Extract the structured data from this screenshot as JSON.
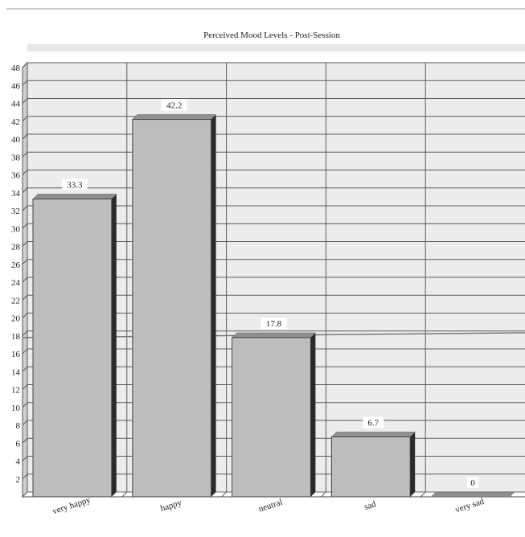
{
  "chart_data": {
    "type": "bar",
    "title": "Perceived Mood Levels - Post-Session",
    "xlabel": "",
    "ylabel": "",
    "categories": [
      "very happy",
      "happy",
      "neutral",
      "sad",
      "very sad"
    ],
    "values": [
      33.3,
      42.2,
      17.8,
      6.7,
      0
    ],
    "value_labels": [
      "33.3",
      "42.2",
      "17.8",
      "6.7",
      "0"
    ],
    "ylim": [
      0,
      48
    ],
    "yticks": [
      "48",
      "46",
      "44",
      "42",
      "40",
      "38",
      "36",
      "34",
      "32",
      "30",
      "28",
      "26",
      "24",
      "22",
      "20",
      "18",
      "16",
      "14",
      "12",
      "10",
      "8",
      "6",
      "4",
      "2"
    ],
    "reference_line": 17.8,
    "grid": true,
    "style": "3d",
    "colors": {
      "bar_front": "#bdbdbd",
      "bar_top": "#8f8f8f",
      "bar_side": "#2a2a2a",
      "plot_bg": "#ececec",
      "grid": "#5a5a5a",
      "reference_line": "#777777"
    }
  }
}
